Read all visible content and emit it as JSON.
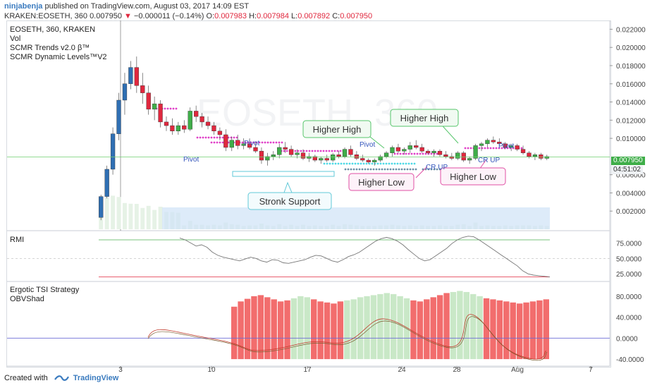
{
  "header": {
    "username": "ninjabenja",
    "published_text": " published on TradingView.com, August 03, 2017 14:09 EST",
    "symbol_line": "KRAKEN:EOSETH, 360",
    "last_price": "0.007950",
    "change_arrow": "▼",
    "change_text": "−0.000011 (−0.14%)",
    "ohlc": {
      "o_label": "O:",
      "o": "0.007983",
      "h_label": "H:",
      "h": "0.007984",
      "l_label": "L:",
      "l": "0.007892",
      "c_label": "C:",
      "c": "0.007950"
    }
  },
  "main_legend": [
    "EOSETH, 360, KRAKEN",
    "Vol",
    "SCMR Trends v2.0 β™",
    "SCMR Dynamic Levels™V2"
  ],
  "watermark": "EOSETH, 360",
  "rmi_legend": "RMI",
  "tsi_legend": [
    "Ergotic TSI Strategy",
    "OBVShad"
  ],
  "price_box": {
    "value": "0.007950",
    "countdown": "04:51:02"
  },
  "footer": {
    "created_with": "Created with",
    "brand": "TradingView"
  },
  "colors": {
    "up": "#3fae49",
    "down": "#e0283e",
    "blue": "#2f6fb3",
    "magenta": "#e040c8",
    "cyan": "#4dd9e6",
    "fill_red": "#f26d6d",
    "fill_green": "#c9e8c7",
    "annotation_green": "#55c56a",
    "annotation_pink": "#e04fa4",
    "annotation_cyan": "#62c9d8"
  },
  "chart_data": {
    "type": "candlestick",
    "panes": [
      {
        "name": "price",
        "y_ticks": [
          "0.022000",
          "0.020000",
          "0.018000",
          "0.016000",
          "0.014000",
          "0.012000",
          "0.010000",
          "0.006000",
          "0.004000",
          "0.002000"
        ],
        "ylim": [
          0.0,
          0.0225
        ],
        "current_price_line": 0.00795,
        "candles": [
          [
            0.0013,
            0.0038,
            0.001,
            0.0036
          ],
          [
            0.0036,
            0.007,
            0.0034,
            0.0066
          ],
          [
            0.0066,
            0.0112,
            0.006,
            0.0105
          ],
          [
            0.0105,
            0.015,
            0.0098,
            0.0142
          ],
          [
            0.0142,
            0.0172,
            0.0126,
            0.016
          ],
          [
            0.016,
            0.0185,
            0.0154,
            0.0178
          ],
          [
            0.0178,
            0.019,
            0.015,
            0.0158
          ],
          [
            0.0158,
            0.0172,
            0.0138,
            0.015
          ],
          [
            0.015,
            0.0158,
            0.0126,
            0.0132
          ],
          [
            0.0132,
            0.0146,
            0.012,
            0.0138
          ],
          [
            0.0138,
            0.0142,
            0.0112,
            0.0118
          ],
          [
            0.0118,
            0.0124,
            0.0108,
            0.0114
          ],
          [
            0.0114,
            0.0122,
            0.0104,
            0.0108
          ],
          [
            0.0108,
            0.0118,
            0.0104,
            0.0114
          ],
          [
            0.0114,
            0.012,
            0.0106,
            0.011
          ],
          [
            0.011,
            0.0134,
            0.0108,
            0.013
          ],
          [
            0.013,
            0.0136,
            0.0118,
            0.0124
          ],
          [
            0.0124,
            0.0128,
            0.0112,
            0.0118
          ],
          [
            0.0118,
            0.0124,
            0.011,
            0.0114
          ],
          [
            0.0114,
            0.0118,
            0.0104,
            0.0108
          ],
          [
            0.0108,
            0.0112,
            0.0098,
            0.0104
          ],
          [
            0.0104,
            0.011,
            0.0086,
            0.009
          ],
          [
            0.009,
            0.0102,
            0.0086,
            0.0098
          ],
          [
            0.0098,
            0.0104,
            0.0088,
            0.0092
          ],
          [
            0.0092,
            0.01,
            0.0088,
            0.0094
          ],
          [
            0.0094,
            0.01,
            0.0088,
            0.009
          ],
          [
            0.009,
            0.0096,
            0.0084,
            0.0086
          ],
          [
            0.0086,
            0.009,
            0.0072,
            0.0076
          ],
          [
            0.0076,
            0.0084,
            0.007,
            0.008
          ],
          [
            0.008,
            0.0086,
            0.0076,
            0.0082
          ],
          [
            0.0082,
            0.0094,
            0.0078,
            0.009
          ],
          [
            0.009,
            0.0096,
            0.0084,
            0.0088
          ],
          [
            0.0088,
            0.0092,
            0.008,
            0.0082
          ],
          [
            0.0082,
            0.0088,
            0.0078,
            0.0084
          ],
          [
            0.0084,
            0.0088,
            0.0076,
            0.0078
          ],
          [
            0.0078,
            0.0084,
            0.0074,
            0.008
          ],
          [
            0.008,
            0.0082,
            0.0074,
            0.0076
          ],
          [
            0.0076,
            0.008,
            0.0072,
            0.0078
          ],
          [
            0.0078,
            0.0082,
            0.0074,
            0.0076
          ],
          [
            0.0076,
            0.0084,
            0.0074,
            0.0082
          ],
          [
            0.0082,
            0.0086,
            0.0078,
            0.008
          ],
          [
            0.008,
            0.009,
            0.0078,
            0.0088
          ],
          [
            0.0088,
            0.0092,
            0.008,
            0.0082
          ],
          [
            0.0082,
            0.0086,
            0.0076,
            0.0078
          ],
          [
            0.0078,
            0.0082,
            0.0074,
            0.0076
          ],
          [
            0.0076,
            0.0078,
            0.0072,
            0.0074
          ],
          [
            0.0074,
            0.0078,
            0.007,
            0.0076
          ],
          [
            0.0076,
            0.0082,
            0.0074,
            0.008
          ],
          [
            0.008,
            0.0086,
            0.0078,
            0.0084
          ],
          [
            0.0084,
            0.0092,
            0.008,
            0.009
          ],
          [
            0.009,
            0.0094,
            0.0084,
            0.0086
          ],
          [
            0.0086,
            0.009,
            0.0082,
            0.0088
          ],
          [
            0.0088,
            0.0096,
            0.0084,
            0.0092
          ],
          [
            0.0092,
            0.0098,
            0.0088,
            0.009
          ],
          [
            0.009,
            0.0094,
            0.0084,
            0.0086
          ],
          [
            0.0086,
            0.0088,
            0.0082,
            0.0084
          ],
          [
            0.0084,
            0.0088,
            0.008,
            0.0086
          ],
          [
            0.0086,
            0.0088,
            0.008,
            0.0082
          ],
          [
            0.0082,
            0.0086,
            0.0078,
            0.008
          ],
          [
            0.008,
            0.0084,
            0.0076,
            0.0078
          ],
          [
            0.0078,
            0.0086,
            0.0076,
            0.0084
          ],
          [
            0.0084,
            0.0086,
            0.0074,
            0.0076
          ],
          [
            0.0076,
            0.008,
            0.0072,
            0.0078
          ],
          [
            0.0078,
            0.0094,
            0.0076,
            0.0092
          ],
          [
            0.0092,
            0.0096,
            0.0086,
            0.0094
          ],
          [
            0.0094,
            0.01,
            0.009,
            0.0098
          ],
          [
            0.0098,
            0.0102,
            0.0094,
            0.0096
          ],
          [
            0.0096,
            0.01,
            0.0092,
            0.0094
          ],
          [
            0.0094,
            0.0096,
            0.0088,
            0.009
          ],
          [
            0.009,
            0.0094,
            0.0086,
            0.0092
          ],
          [
            0.0092,
            0.0094,
            0.0086,
            0.0088
          ],
          [
            0.0088,
            0.0092,
            0.0082,
            0.0084
          ],
          [
            0.0084,
            0.0086,
            0.0078,
            0.008
          ],
          [
            0.008,
            0.0084,
            0.0076,
            0.0082
          ],
          [
            0.0082,
            0.0084,
            0.0076,
            0.0078
          ],
          [
            0.0078,
            0.0082,
            0.0076,
            0.008
          ]
        ]
      },
      {
        "name": "RMI",
        "y_ticks": [
          "75.0000",
          "50.0000",
          "25.0000"
        ],
        "ylim": [
          15,
          88
        ],
        "values": [
          83,
          80,
          75,
          70,
          72,
          68,
          60,
          55,
          52,
          50,
          48,
          46,
          49,
          52,
          50,
          46,
          44,
          48,
          47,
          43,
          42,
          44,
          46,
          48,
          52,
          55,
          54,
          50,
          46,
          44,
          48,
          53,
          56,
          60,
          66,
          72,
          78,
          82,
          84,
          82,
          78,
          72,
          64,
          57,
          50,
          46,
          48,
          54,
          60,
          66,
          74,
          80,
          84,
          86,
          85,
          80,
          74,
          68,
          62,
          56,
          50,
          44,
          38,
          30,
          25,
          23,
          22,
          21,
          20
        ]
      },
      {
        "name": "Ergotic TSI Strategy",
        "y_ticks": [
          "80.0000",
          "40.0000",
          "0.0000",
          "-40.0000"
        ],
        "ylim": [
          -48,
          100
        ],
        "hist": [
          60,
          70,
          75,
          80,
          82,
          78,
          74,
          70,
          72,
          76,
          80,
          78,
          74,
          70,
          68,
          66,
          70,
          72,
          74,
          78,
          80,
          82,
          84,
          86,
          84,
          80,
          76,
          72,
          70,
          74,
          78,
          82,
          86,
          88,
          90,
          88,
          84,
          80,
          76,
          74,
          72,
          70,
          68,
          66,
          68,
          70,
          72,
          74
        ]
      },
      {
        "name": "x_axis",
        "tick_labels": [
          "3",
          "10",
          "17",
          "24",
          "28",
          "Aug",
          "7"
        ]
      }
    ],
    "annotations": [
      "Higher High",
      "Higher High",
      "Higher Low",
      "Higher Low",
      "Stronk Support",
      "Pivot",
      "Pivot",
      "Pivot",
      "Pivot",
      "CR UP",
      "CR UP"
    ]
  }
}
